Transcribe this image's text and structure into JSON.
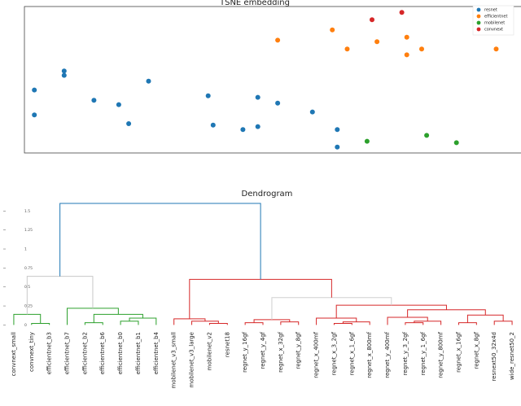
{
  "chart_data": [
    {
      "type": "scatter",
      "title": "TSNE embedding",
      "xlim": [
        0,
        100
      ],
      "ylim": [
        0,
        100
      ],
      "legend": "upper right",
      "series": [
        {
          "name": "resnet",
          "color": "#1f77b4",
          "x": [
            2,
            2,
            8,
            8,
            14,
            19,
            21,
            25,
            37,
            38,
            44,
            47,
            47,
            51,
            58,
            63,
            63
          ],
          "values": [
            43,
            26,
            56,
            53,
            36,
            33,
            20,
            49,
            39,
            19,
            16,
            38,
            18,
            34,
            28,
            16,
            4
          ]
        },
        {
          "name": "efficientnet",
          "color": "#ff7f0e",
          "x": [
            51,
            62,
            65,
            71,
            77,
            80,
            77,
            95
          ],
          "values": [
            77,
            84,
            71,
            76,
            79,
            71,
            67,
            71
          ]
        },
        {
          "name": "mobilenet",
          "color": "#2ca02c",
          "x": [
            69,
            81,
            87
          ],
          "values": [
            8,
            12,
            7
          ]
        },
        {
          "name": "convnext",
          "color": "#d62728",
          "x": [
            70,
            76
          ],
          "values": [
            91,
            96
          ]
        }
      ]
    },
    {
      "type": "dendrogram",
      "title": "Dendrogram",
      "ylim": [
        -0.06,
        1.6
      ],
      "yticks": [
        0.0,
        0.25,
        0.5,
        0.75,
        1.0,
        1.25,
        1.5
      ],
      "leaves": [
        "convnext_small",
        "convnext_tiny",
        "efficientnet_b3",
        "efficientnet_b7",
        "efficientnet_b2",
        "efficientnet_b6",
        "efficientnet_b0",
        "efficientnet_b1",
        "efficientnet_b4",
        "mobilenet_v3_small",
        "mobilenet_v3_large",
        "mobilenet_v2",
        "resnet18",
        "regnet_y_16gf",
        "regnet_y_4gf",
        "regnet_x_32gf",
        "regnet_y_8gf",
        "regnet_x_400mf",
        "regnet_x_3_2gf",
        "regnet_x_1_6gf",
        "regnet_x_800mf",
        "regnet_y_400mf",
        "regnet_y_3_2gf",
        "regnet_y_1_6gf",
        "regnet_y_800mf",
        "regnet_x_16gf",
        "regnet_x_8gf",
        "resnext50_32x4d",
        "wide_resnet50_2"
      ],
      "merges": [
        {
          "children": [
            1,
            2
          ],
          "height": 0.02,
          "color": "#2ca02c"
        },
        {
          "children": [
            0,
            29
          ],
          "height": 0.14,
          "color": "#2ca02c"
        },
        {
          "children": [
            4,
            5
          ],
          "height": 0.03,
          "color": "#2ca02c"
        },
        {
          "children": [
            6,
            7
          ],
          "height": 0.05,
          "color": "#2ca02c"
        },
        {
          "children": [
            32,
            8
          ],
          "height": 0.09,
          "color": "#2ca02c"
        },
        {
          "children": [
            31,
            33
          ],
          "height": 0.14,
          "color": "#2ca02c"
        },
        {
          "children": [
            3,
            34
          ],
          "height": 0.22,
          "color": "#2ca02c"
        },
        {
          "children": [
            30,
            35
          ],
          "height": 0.64,
          "color": "#c8c8c8"
        },
        {
          "children": [
            11,
            12
          ],
          "height": 0.02,
          "color": "#d62728"
        },
        {
          "children": [
            10,
            37
          ],
          "height": 0.05,
          "color": "#d62728"
        },
        {
          "children": [
            9,
            38
          ],
          "height": 0.08,
          "color": "#d62728"
        },
        {
          "children": [
            13,
            14
          ],
          "height": 0.03,
          "color": "#d62728"
        },
        {
          "children": [
            15,
            16
          ],
          "height": 0.04,
          "color": "#d62728"
        },
        {
          "children": [
            40,
            41
          ],
          "height": 0.07,
          "color": "#d62728"
        },
        {
          "children": [
            18,
            19
          ],
          "height": 0.02,
          "color": "#d62728"
        },
        {
          "children": [
            43,
            20
          ],
          "height": 0.04,
          "color": "#d62728"
        },
        {
          "children": [
            17,
            44
          ],
          "height": 0.09,
          "color": "#d62728"
        },
        {
          "children": [
            22,
            23
          ],
          "height": 0.03,
          "color": "#d62728"
        },
        {
          "children": [
            46,
            24
          ],
          "height": 0.05,
          "color": "#d62728"
        },
        {
          "children": [
            21,
            47
          ],
          "height": 0.1,
          "color": "#d62728"
        },
        {
          "children": [
            25,
            26
          ],
          "height": 0.03,
          "color": "#d62728"
        },
        {
          "children": [
            27,
            28
          ],
          "height": 0.05,
          "color": "#d62728"
        },
        {
          "children": [
            49,
            50
          ],
          "height": 0.13,
          "color": "#d62728"
        },
        {
          "children": [
            48,
            51
          ],
          "height": 0.2,
          "color": "#d62728"
        },
        {
          "children": [
            45,
            52
          ],
          "height": 0.26,
          "color": "#d62728"
        },
        {
          "children": [
            42,
            53
          ],
          "height": 0.36,
          "color": "#d0d0d0"
        },
        {
          "children": [
            39,
            54
          ],
          "height": 0.6,
          "color": "#d62728"
        },
        {
          "children": [
            36,
            55
          ],
          "height": 1.6,
          "color": "#1f77b4"
        }
      ]
    }
  ]
}
